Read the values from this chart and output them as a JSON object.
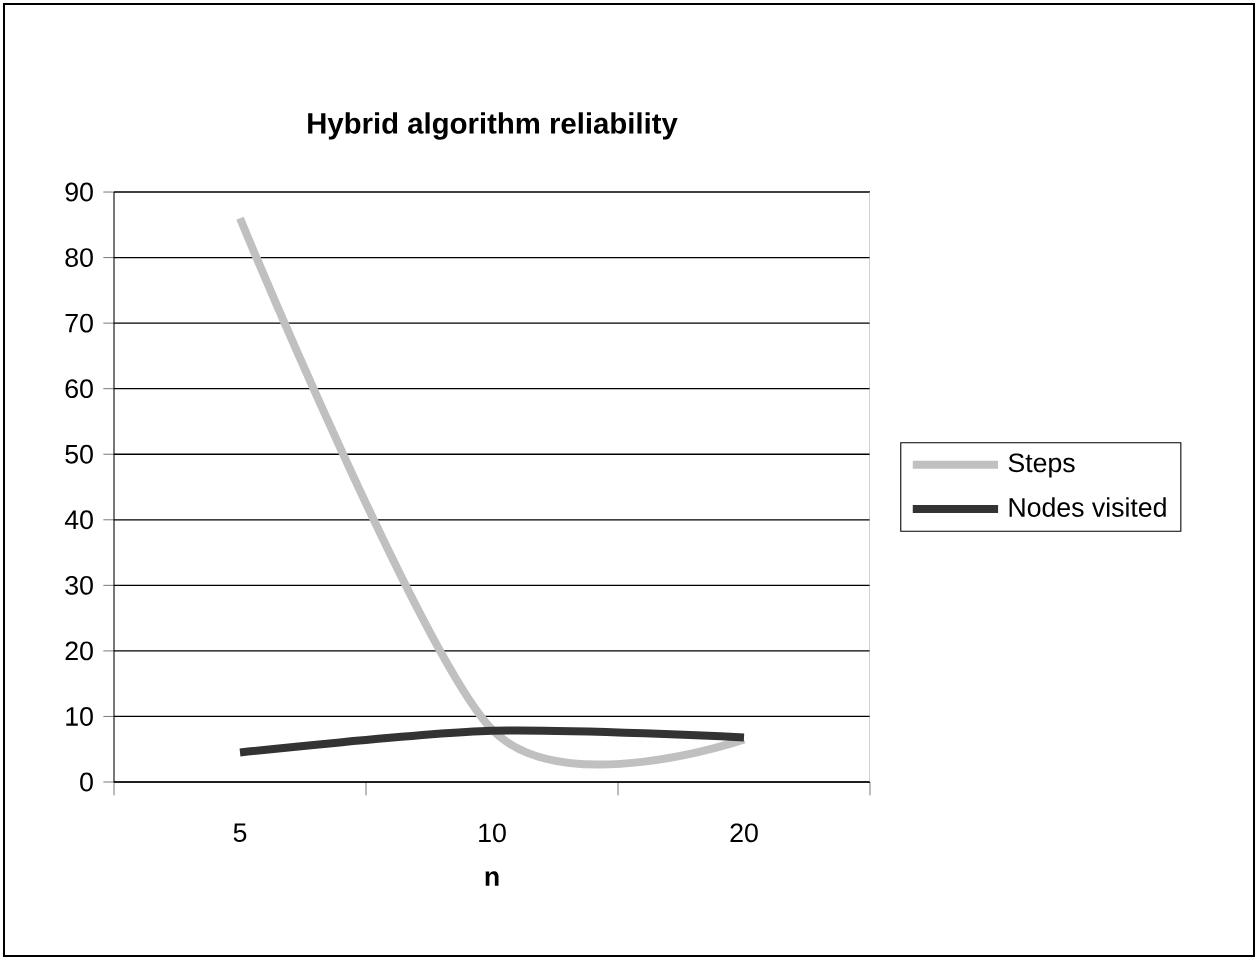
{
  "chart_data": {
    "type": "line",
    "title": "Hybrid algorithm reliability",
    "xlabel": "n",
    "categories": [
      "5",
      "10",
      "20"
    ],
    "series": [
      {
        "name": "Steps",
        "color": "#c0c0c0",
        "values": [
          86,
          8,
          6.5
        ]
      },
      {
        "name": "Nodes visited",
        "color": "#333333",
        "values": [
          4.5,
          7.8,
          6.8
        ]
      }
    ],
    "ylim": [
      0,
      90
    ],
    "yticks": [
      0,
      10,
      20,
      30,
      40,
      50,
      60,
      70,
      80,
      90
    ],
    "grid": "y",
    "legend": "right"
  }
}
